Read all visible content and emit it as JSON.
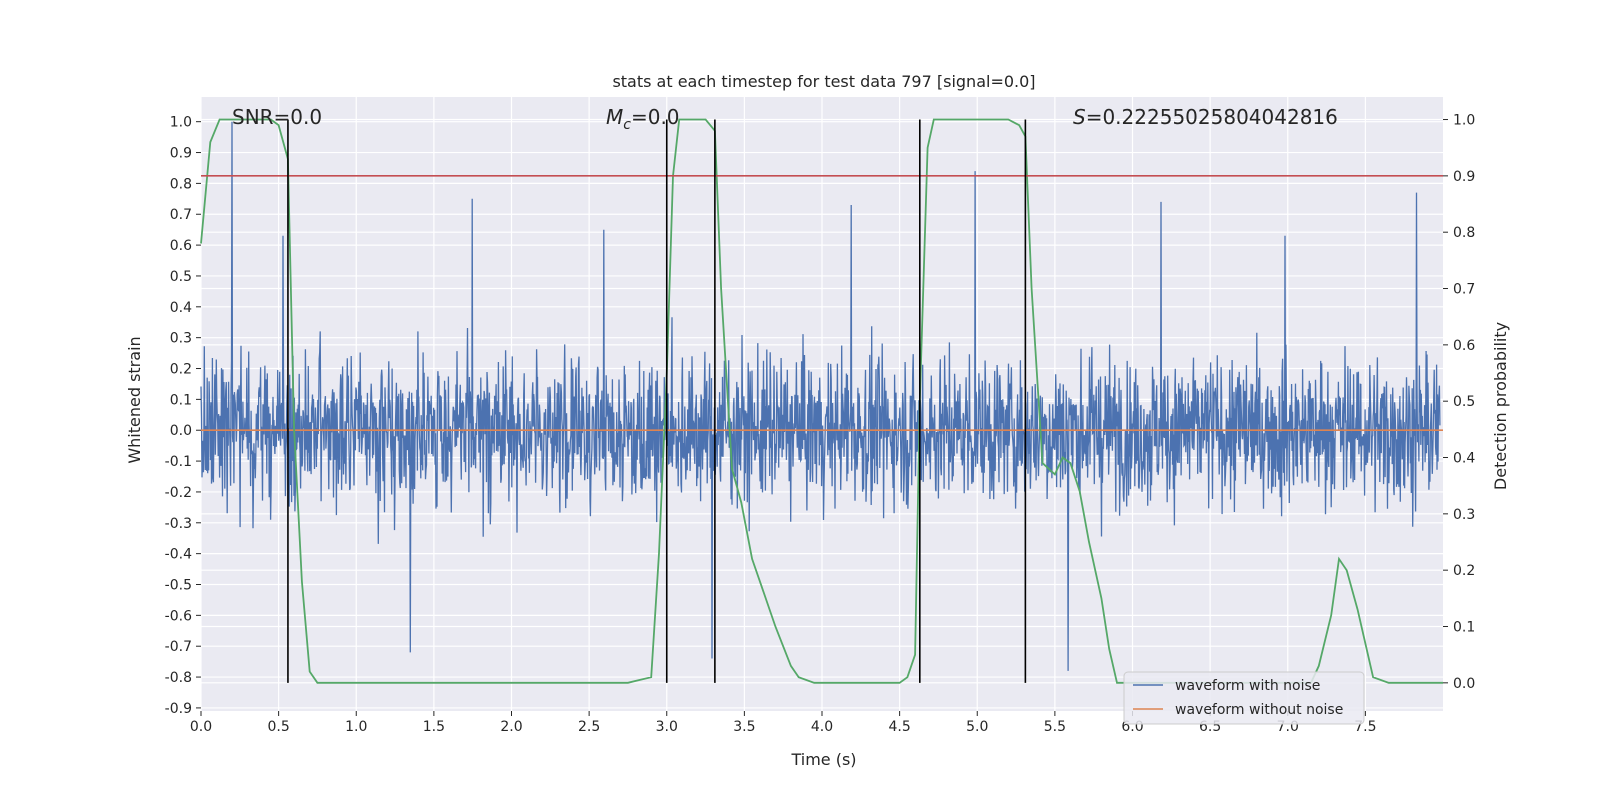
{
  "chart_data": {
    "type": "line",
    "title": "stats at each timestep for test data 797 [signal=0.0]",
    "xlabel": "Time (s)",
    "ylabel": "Whitened strain",
    "y2label": "Detection probability",
    "xlim": [
      0.0,
      8.0
    ],
    "ylim": [
      -0.91,
      1.08
    ],
    "y2lim": [
      -0.05,
      1.04
    ],
    "grid": true,
    "x_ticks": [
      0.0,
      0.5,
      1.0,
      1.5,
      2.0,
      2.5,
      3.0,
      3.5,
      4.0,
      4.5,
      5.0,
      5.5,
      6.0,
      6.5,
      7.0,
      7.5
    ],
    "x_tick_labels": [
      "0.0",
      "0.5",
      "1.0",
      "1.5",
      "2.0",
      "2.5",
      "3.0",
      "3.5",
      "4.0",
      "4.5",
      "5.0",
      "5.5",
      "6.0",
      "6.5",
      "7.0",
      "7.5"
    ],
    "y_ticks": [
      1.0,
      0.9,
      0.8,
      0.7,
      0.6,
      0.5,
      0.4,
      0.3,
      0.2,
      0.1,
      0.0,
      -0.1,
      -0.2,
      -0.3,
      -0.4,
      -0.5,
      -0.6,
      -0.7,
      -0.8,
      -0.9
    ],
    "y_tick_labels": [
      "1.0",
      "0.9",
      "0.8",
      "0.7",
      "0.6",
      "0.5",
      "0.4",
      "0.3",
      "0.2",
      "0.1",
      "0.0",
      "-0.1",
      "-0.2",
      "-0.3",
      "-0.4",
      "-0.5",
      "-0.6",
      "-0.7",
      "-0.8",
      "-0.9"
    ],
    "y2_ticks": [
      1.0,
      0.9,
      0.8,
      0.7,
      0.6,
      0.5,
      0.4,
      0.3,
      0.2,
      0.1,
      0.0
    ],
    "y2_tick_labels": [
      "1.0",
      "0.9",
      "0.8",
      "0.7",
      "0.6",
      "0.5",
      "0.4",
      "0.3",
      "0.2",
      "0.1",
      "0.0"
    ],
    "annotations": {
      "snr": "SNR=0.0",
      "mc_symbol": "M",
      "mc_subscript": "c",
      "mc_value": "=0.0",
      "s_symbol": "S",
      "s_value": "=0.22255025804042816"
    },
    "legend": {
      "placement": "lower-right",
      "entries": [
        {
          "label": "waveform with noise",
          "color": "#4c72b0"
        },
        {
          "label": "waveform without noise",
          "color": "#dd8452"
        }
      ]
    },
    "threshold_y2": 0.9,
    "vertical_lines_x": [
      0.56,
      3.0,
      3.31,
      4.63,
      5.31
    ],
    "noise_envelope": {
      "description_values": "dense noise band",
      "typical_amplitude": 0.3,
      "spike_x": [
        0.2,
        0.53,
        1.35,
        1.75,
        2.6,
        3.3,
        4.2,
        5.0,
        5.6,
        6.2,
        7.0,
        7.85
      ],
      "spike_y": [
        1.0,
        0.63,
        -0.72,
        0.75,
        0.65,
        -0.74,
        0.73,
        0.84,
        -0.78,
        0.74,
        0.63,
        0.77
      ]
    },
    "series": [
      {
        "name": "waveform without noise",
        "axis": "left",
        "color": "#dd8452",
        "x": [
          0.0,
          8.0
        ],
        "values": [
          0.0,
          0.0
        ]
      },
      {
        "name": "detection probability",
        "axis": "right",
        "color": "#55a868",
        "x": [
          0.0,
          0.06,
          0.12,
          0.18,
          0.25,
          0.35,
          0.45,
          0.5,
          0.56,
          0.6,
          0.65,
          0.7,
          0.75,
          0.8,
          1.0,
          1.5,
          2.0,
          2.5,
          2.75,
          2.9,
          2.95,
          3.0,
          3.04,
          3.08,
          3.15,
          3.2,
          3.25,
          3.31,
          3.35,
          3.42,
          3.48,
          3.55,
          3.6,
          3.7,
          3.8,
          3.85,
          3.95,
          4.2,
          4.4,
          4.5,
          4.55,
          4.6,
          4.63,
          4.68,
          4.72,
          4.8,
          5.0,
          5.2,
          5.27,
          5.31,
          5.35,
          5.42,
          5.5,
          5.55,
          5.6,
          5.66,
          5.72,
          5.8,
          5.85,
          5.9,
          6.0,
          6.5,
          7.0,
          7.15,
          7.2,
          7.28,
          7.33,
          7.38,
          7.45,
          7.55,
          7.65,
          8.0
        ],
        "values": [
          0.78,
          0.96,
          1.0,
          1.0,
          1.0,
          1.0,
          1.0,
          0.99,
          0.93,
          0.45,
          0.18,
          0.02,
          0.0,
          0.0,
          0.0,
          0.0,
          0.0,
          0.0,
          0.0,
          0.01,
          0.23,
          0.55,
          0.9,
          1.0,
          1.0,
          1.0,
          1.0,
          0.98,
          0.7,
          0.38,
          0.32,
          0.22,
          0.18,
          0.1,
          0.03,
          0.01,
          0.0,
          0.0,
          0.0,
          0.0,
          0.01,
          0.05,
          0.5,
          0.95,
          1.0,
          1.0,
          1.0,
          1.0,
          0.99,
          0.97,
          0.7,
          0.39,
          0.37,
          0.4,
          0.39,
          0.34,
          0.25,
          0.15,
          0.06,
          0.0,
          0.0,
          0.0,
          0.0,
          0.0,
          0.03,
          0.12,
          0.22,
          0.2,
          0.13,
          0.01,
          0.0,
          0.0
        ]
      }
    ]
  }
}
